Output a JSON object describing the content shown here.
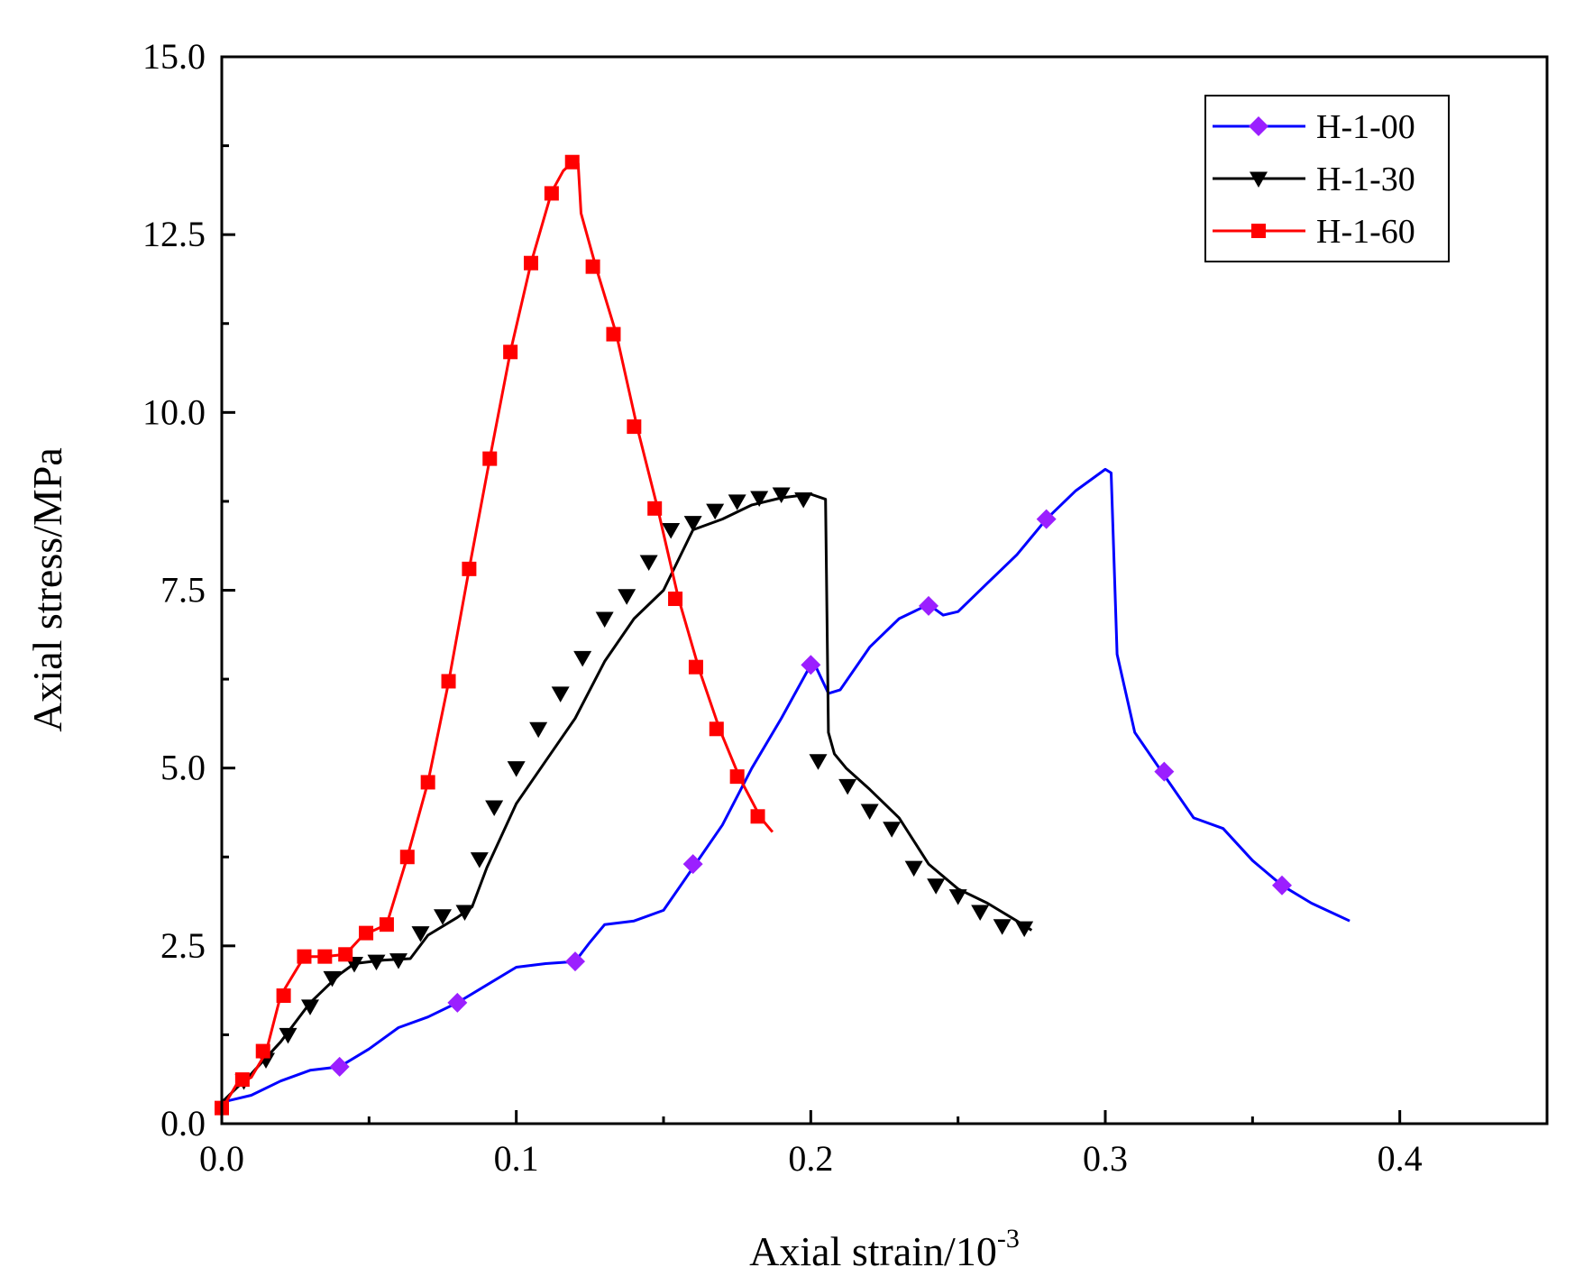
{
  "chart_data": {
    "type": "line",
    "xlabel": "Axial strain/10",
    "xlabel_exponent": "-3",
    "ylabel": "Axial stress/MPa",
    "xlim": [
      0,
      0.45
    ],
    "ylim": [
      0,
      15
    ],
    "xticks": [
      0.0,
      0.1,
      0.2,
      0.3,
      0.4
    ],
    "xtick_labels": [
      "0.0",
      "0.1",
      "0.2",
      "0.3",
      "0.4"
    ],
    "yticks": [
      0,
      2.5,
      5,
      7.5,
      10,
      12.5,
      15
    ],
    "ytick_labels": [
      "0.0",
      "2.5",
      "5.0",
      "7.5",
      "10.0",
      "12.5",
      "15.0"
    ],
    "legend_position": "top-right",
    "grid": false,
    "series": [
      {
        "name": "H-1-00",
        "color": "#0000ff",
        "marker": "diamond",
        "marker_color": "#9b1fff",
        "x": [
          0,
          0.01,
          0.02,
          0.03,
          0.04,
          0.05,
          0.06,
          0.07,
          0.08,
          0.09,
          0.1,
          0.11,
          0.12,
          0.125,
          0.13,
          0.14,
          0.15,
          0.16,
          0.17,
          0.18,
          0.19,
          0.2,
          0.202,
          0.206,
          0.21,
          0.22,
          0.23,
          0.24,
          0.245,
          0.25,
          0.26,
          0.27,
          0.28,
          0.29,
          0.3,
          0.302,
          0.304,
          0.31,
          0.32,
          0.33,
          0.34,
          0.35,
          0.36,
          0.37,
          0.383
        ],
        "y": [
          0.3,
          0.4,
          0.6,
          0.75,
          0.8,
          1.05,
          1.35,
          1.5,
          1.7,
          1.95,
          2.2,
          2.25,
          2.28,
          2.55,
          2.8,
          2.85,
          3.0,
          3.6,
          4.2,
          5.0,
          5.7,
          6.45,
          6.4,
          6.05,
          6.1,
          6.7,
          7.1,
          7.3,
          7.15,
          7.2,
          7.6,
          8.0,
          8.5,
          8.9,
          9.2,
          9.15,
          6.6,
          5.5,
          4.9,
          4.3,
          4.15,
          3.7,
          3.35,
          3.1,
          2.85
        ],
        "marker_x": [
          0.04,
          0.08,
          0.12,
          0.16,
          0.2,
          0.24,
          0.28,
          0.32,
          0.36
        ],
        "marker_y": [
          0.8,
          1.7,
          2.28,
          3.65,
          6.45,
          7.28,
          8.5,
          4.95,
          3.35
        ]
      },
      {
        "name": "H-1-30",
        "color": "#000000",
        "marker": "triangle-down",
        "marker_color": "#000000",
        "x": [
          0,
          0.01,
          0.02,
          0.03,
          0.04,
          0.045,
          0.055,
          0.064,
          0.07,
          0.08,
          0.085,
          0.09,
          0.1,
          0.11,
          0.12,
          0.13,
          0.14,
          0.15,
          0.16,
          0.17,
          0.18,
          0.19,
          0.2,
          0.205,
          0.206,
          0.208,
          0.212,
          0.22,
          0.23,
          0.24,
          0.25,
          0.26,
          0.27,
          0.275
        ],
        "y": [
          0.3,
          0.7,
          1.15,
          1.7,
          2.1,
          2.25,
          2.3,
          2.32,
          2.65,
          2.9,
          3.05,
          3.6,
          4.5,
          5.1,
          5.7,
          6.5,
          7.1,
          7.5,
          8.35,
          8.5,
          8.7,
          8.8,
          8.85,
          8.78,
          5.5,
          5.2,
          5.0,
          4.7,
          4.3,
          3.65,
          3.3,
          3.1,
          2.85,
          2.72
        ],
        "marker_x": [
          0.0075,
          0.015,
          0.0225,
          0.03,
          0.0375,
          0.045,
          0.0525,
          0.06,
          0.0675,
          0.075,
          0.0825,
          0.0875,
          0.0925,
          0.1,
          0.1075,
          0.115,
          0.1225,
          0.13,
          0.1375,
          0.145,
          0.1525,
          0.16,
          0.1675,
          0.175,
          0.1825,
          0.19,
          0.1975,
          0.2025,
          0.2125,
          0.22,
          0.2275,
          0.235,
          0.2425,
          0.25,
          0.2575,
          0.265,
          0.2725
        ],
        "marker_y": [
          0.6,
          0.9,
          1.25,
          1.65,
          2.05,
          2.25,
          2.28,
          2.3,
          2.68,
          2.92,
          2.98,
          3.72,
          4.45,
          5.0,
          5.55,
          6.05,
          6.55,
          7.1,
          7.42,
          7.9,
          8.35,
          8.45,
          8.62,
          8.75,
          8.8,
          8.85,
          8.78,
          5.1,
          4.75,
          4.4,
          4.15,
          3.6,
          3.35,
          3.2,
          2.98,
          2.78,
          2.75
        ]
      },
      {
        "name": "H-1-60",
        "color": "#ff0000",
        "marker": "square",
        "marker_color": "#ff0000",
        "x": [
          0,
          0.005,
          0.01,
          0.015,
          0.02,
          0.028,
          0.035,
          0.042,
          0.048,
          0.056,
          0.063,
          0.07,
          0.077,
          0.084,
          0.091,
          0.098,
          0.105,
          0.112,
          0.116,
          0.12,
          0.121,
          0.122,
          0.127,
          0.134,
          0.141,
          0.148,
          0.155,
          0.162,
          0.169,
          0.176,
          0.183,
          0.187
        ],
        "y": [
          0.2,
          0.55,
          0.65,
          1.0,
          1.8,
          2.35,
          2.35,
          2.38,
          2.65,
          2.8,
          3.75,
          4.8,
          6.2,
          7.8,
          9.35,
          10.85,
          12.1,
          13.1,
          13.4,
          13.55,
          13.5,
          12.8,
          12.05,
          11.1,
          9.8,
          8.65,
          7.4,
          6.4,
          5.55,
          4.85,
          4.3,
          4.1
        ],
        "marker_x": [
          0,
          0.007,
          0.014,
          0.021,
          0.028,
          0.035,
          0.042,
          0.049,
          0.056,
          0.063,
          0.07,
          0.077,
          0.084,
          0.091,
          0.098,
          0.105,
          0.112,
          0.119,
          0.126,
          0.133,
          0.14,
          0.147,
          0.154,
          0.161,
          0.168,
          0.175,
          0.182
        ],
        "marker_y": [
          0.22,
          0.62,
          1.02,
          1.8,
          2.35,
          2.35,
          2.38,
          2.68,
          2.8,
          3.75,
          4.8,
          6.22,
          7.8,
          9.35,
          10.85,
          12.1,
          13.08,
          13.52,
          12.05,
          11.1,
          9.8,
          8.65,
          7.38,
          6.42,
          5.55,
          4.88,
          4.32
        ]
      }
    ]
  }
}
